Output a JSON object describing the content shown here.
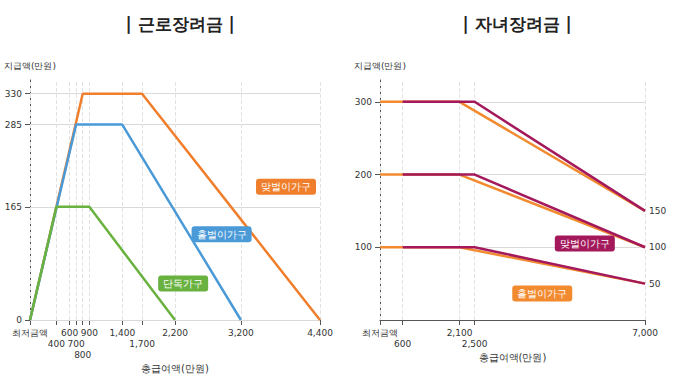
{
  "chart_data": [
    {
      "type": "line",
      "title": "| 근로장려금 |",
      "x_label": "총급여액(만원)",
      "y_label": "지급액(만원)",
      "xlim": [
        0,
        4400
      ],
      "xticks": [
        {
          "value": 0,
          "label": "최저금액"
        },
        400,
        600,
        700,
        800,
        900,
        {
          "value": 1400,
          "label": "1,400"
        },
        {
          "value": 1700,
          "label": "1,700"
        },
        {
          "value": 2200,
          "label": "2,200"
        },
        {
          "value": 3200,
          "label": "3,200"
        },
        {
          "value": 4400,
          "label": "4,400"
        }
      ],
      "ylim": [
        0,
        350
      ],
      "yticks": [
        0,
        165,
        285,
        330
      ],
      "grid": true,
      "series": [
        {
          "name": "맞벌이가구",
          "color": "#f07f2d",
          "x": [
            0,
            800,
            1700,
            4400
          ],
          "values": [
            0,
            330,
            330,
            0
          ]
        },
        {
          "name": "홑벌이가구",
          "color": "#4a9ad8",
          "x": [
            0,
            700,
            1400,
            3200
          ],
          "values": [
            0,
            285,
            285,
            0
          ]
        },
        {
          "name": "단독가구",
          "color": "#6ab23f",
          "x": [
            0,
            400,
            900,
            2200
          ],
          "values": [
            0,
            165,
            165,
            0
          ]
        }
      ]
    },
    {
      "type": "line",
      "title": "| 자녀장려금 |",
      "x_label": "총급여액(만원)",
      "y_label": "지급액(만원)",
      "xlim": [
        0,
        7000
      ],
      "xticks": [
        {
          "value": 0,
          "label": "최저금액"
        },
        600,
        {
          "value": 2100,
          "label": "2,100"
        },
        {
          "value": 2500,
          "label": "2,500"
        },
        {
          "value": 7000,
          "label": "7,000"
        }
      ],
      "ylim": [
        0,
        330
      ],
      "yticks": [
        100,
        200,
        300
      ],
      "grid": true,
      "series": [
        {
          "name": "홑벌이가구",
          "color": "#f28a30",
          "x": [
            0,
            2100,
            7000,
            null,
            0,
            2100,
            7000,
            null,
            0,
            2100,
            7000
          ],
          "values": [
            300,
            300,
            150,
            null,
            200,
            200,
            100,
            null,
            100,
            100,
            50
          ],
          "value_labels": [
            null,
            null,
            "150",
            null,
            null,
            null,
            "100",
            null,
            null,
            null,
            "50"
          ]
        },
        {
          "name": "맞벌이가구",
          "color": "#a3195b",
          "x": [
            600,
            2500,
            7000,
            null,
            600,
            2500,
            7000,
            null,
            600,
            2500,
            7000
          ],
          "values": [
            300,
            300,
            150,
            null,
            200,
            200,
            100,
            null,
            100,
            100,
            50
          ]
        }
      ]
    }
  ]
}
